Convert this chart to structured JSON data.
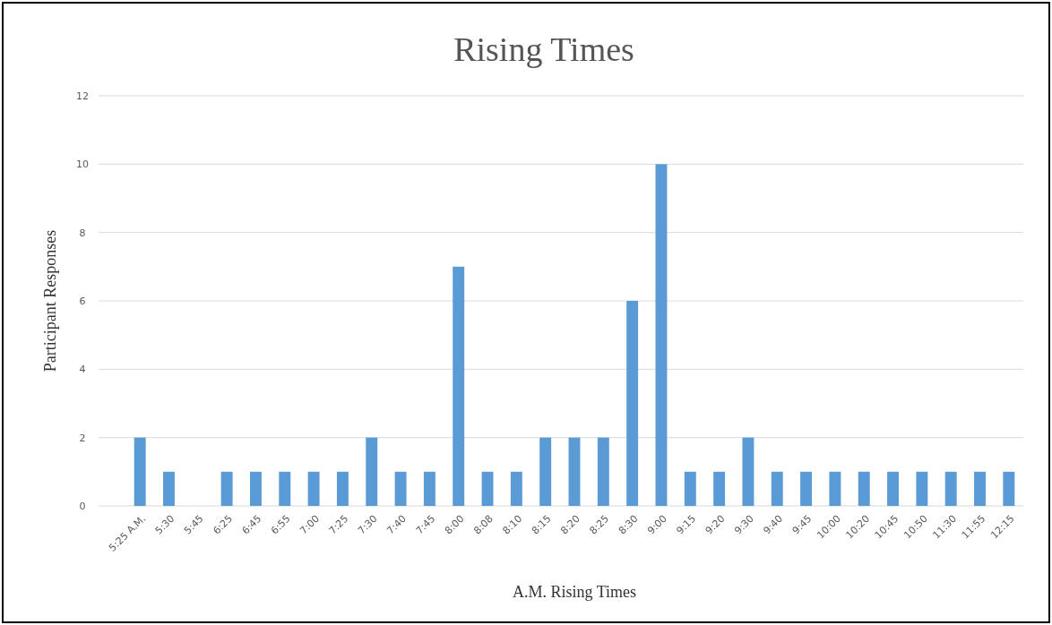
{
  "chart_data": {
    "type": "bar",
    "title": "Rising Times",
    "xlabel": "A.M. Rising Times",
    "ylabel": "Participant Responses",
    "categories": [
      "5:25 A.M.",
      "5:30",
      "5:45",
      "6:25",
      "6:45",
      "6:55",
      "7:00",
      "7:25",
      "7:30",
      "7:40",
      "7:45",
      "8:00",
      "8:08",
      "8:10",
      "8:15",
      "8:20",
      "8:25",
      "8:30",
      "9:00",
      "9:15",
      "9:20",
      "9:30",
      "9:40",
      "9:45",
      "10:00",
      "10:20",
      "10:45",
      "10:50",
      "11:30",
      "11:55",
      "12:15"
    ],
    "values": [
      2,
      1,
      0,
      1,
      1,
      1,
      1,
      1,
      2,
      1,
      1,
      7,
      1,
      1,
      2,
      2,
      2,
      6,
      10,
      1,
      1,
      2,
      1,
      1,
      1,
      1,
      1,
      1,
      1,
      1,
      1
    ],
    "color": "#5b9bd5",
    "ylim": [
      0,
      12
    ],
    "yticks": [
      0,
      2,
      4,
      6,
      8,
      10,
      12
    ],
    "grid": "y"
  }
}
